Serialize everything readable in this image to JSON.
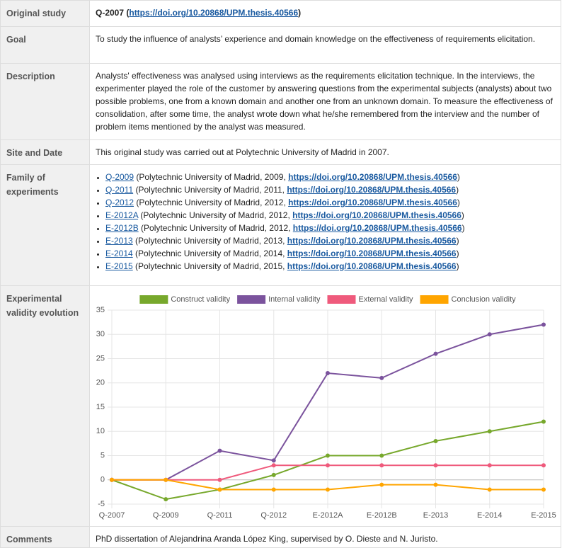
{
  "rows": [
    {
      "label": "Original study",
      "content": [
        {
          "text": "Q-2007 (",
          "style": "bold"
        },
        {
          "text": "https://doi.org/10.20868/UPM.thesis.40566",
          "style": "link-bold"
        },
        {
          "text": ")",
          "style": "bold"
        }
      ]
    },
    {
      "label": "Goal",
      "content": [
        {
          "text": "To study the influence of analysts’ experience and domain knowledge on the effectiveness of requirements elicitation."
        }
      ]
    },
    {
      "label": "Description",
      "content": [
        {
          "text": "Analysts' effectiveness was analysed using interviews as the requirements elicitation technique. In the interviews, the experimenter played the role of the customer by answering questions from the experimental subjects (analysts) about two possible problems, one from a known domain and another one from an unknown domain. To measure the effectiveness of consolidation, after some time, the analyst wrote down what he/she remembered from the interview and the number of problem items mentioned by the analyst was measured."
        }
      ]
    },
    {
      "label": "Site and Date",
      "content": [
        {
          "text": "This original study was carried out at Polytechnic University of Madrid in 2007."
        }
      ]
    },
    {
      "label": "Family of experiments",
      "items": [
        [
          {
            "text": "Q-2009",
            "style": "link"
          },
          {
            "text": " (Polytechnic University of Madrid, 2009, "
          },
          {
            "text": "https://doi.org/10.20868/UPM.thesis.40566",
            "style": "link-bold"
          },
          {
            "text": ")"
          }
        ],
        [
          {
            "text": "Q-2011",
            "style": "link"
          },
          {
            "text": " (Polytechnic University of Madrid, 2011, "
          },
          {
            "text": "https://doi.org/10.20868/UPM.thesis.40566",
            "style": "link-bold"
          },
          {
            "text": ")"
          }
        ],
        [
          {
            "text": "Q-2012",
            "style": "link"
          },
          {
            "text": " (Polytechnic University of Madrid, 2012, "
          },
          {
            "text": "https://doi.org/10.20868/UPM.thesis.40566",
            "style": "link-bold"
          },
          {
            "text": ")"
          }
        ],
        [
          {
            "text": "E-2012A",
            "style": "link"
          },
          {
            "text": " (Polytechnic University of Madrid, 2012, "
          },
          {
            "text": "https://doi.org/10.20868/UPM.thesis.40566",
            "style": "link-bold"
          },
          {
            "text": ")"
          }
        ],
        [
          {
            "text": "E-2012B",
            "style": "link"
          },
          {
            "text": " (Polytechnic University of Madrid, 2012, "
          },
          {
            "text": "https://doi.org/10.20868/UPM.thesis.40566",
            "style": "link-bold"
          },
          {
            "text": ")"
          }
        ],
        [
          {
            "text": "E-2013",
            "style": "link"
          },
          {
            "text": " (Polytechnic University of Madrid, 2013, "
          },
          {
            "text": "https://doi.org/10.20868/UPM.thesis.40566",
            "style": "link-bold"
          },
          {
            "text": ")"
          }
        ],
        [
          {
            "text": "E-2014",
            "style": "link"
          },
          {
            "text": " (Polytechnic University of Madrid, 2014, "
          },
          {
            "text": "https://doi.org/10.20868/UPM.thesis.40566",
            "style": "link-bold"
          },
          {
            "text": ")"
          }
        ],
        [
          {
            "text": "E-2015",
            "style": "link"
          },
          {
            "text": " (Polytechnic University of Madrid, 2015, "
          },
          {
            "text": "https://doi.org/10.20868/UPM.thesis.40566",
            "style": "link-bold"
          },
          {
            "text": ")"
          }
        ]
      ]
    },
    {
      "label": "Experimental validity evolution",
      "chart": true
    },
    {
      "label": "Comments",
      "content": [
        {
          "text": "PhD dissertation of Alejandrina Aranda López King, supervised by O. Dieste and N. Juristo."
        }
      ]
    }
  ],
  "chart_data": {
    "type": "line",
    "categories": [
      "Q-2007",
      "Q-2009",
      "Q-2011",
      "Q-2012",
      "E-2012A",
      "E-2012B",
      "E-2013",
      "E-2014",
      "E-2015"
    ],
    "series": [
      {
        "name": "Construct validity",
        "color": "#77a82c",
        "values": [
          0,
          -4,
          -2,
          1,
          5,
          5,
          8,
          10,
          12
        ]
      },
      {
        "name": "Internal validity",
        "color": "#7b539d",
        "values": [
          0,
          0,
          6,
          4,
          22,
          21,
          26,
          30,
          32
        ]
      },
      {
        "name": "External validity",
        "color": "#ef5a7c",
        "values": [
          0,
          0,
          0,
          3,
          3,
          3,
          3,
          3,
          3
        ]
      },
      {
        "name": "Conclusion validity",
        "color": "#ffa500",
        "values": [
          0,
          0,
          -2,
          -2,
          -2,
          -1,
          -1,
          -2,
          -2
        ]
      }
    ],
    "ylim": [
      -5,
      35
    ],
    "yticks": [
      -5,
      0,
      5,
      10,
      15,
      20,
      25,
      30,
      35
    ],
    "grid": true,
    "legend": "top"
  }
}
